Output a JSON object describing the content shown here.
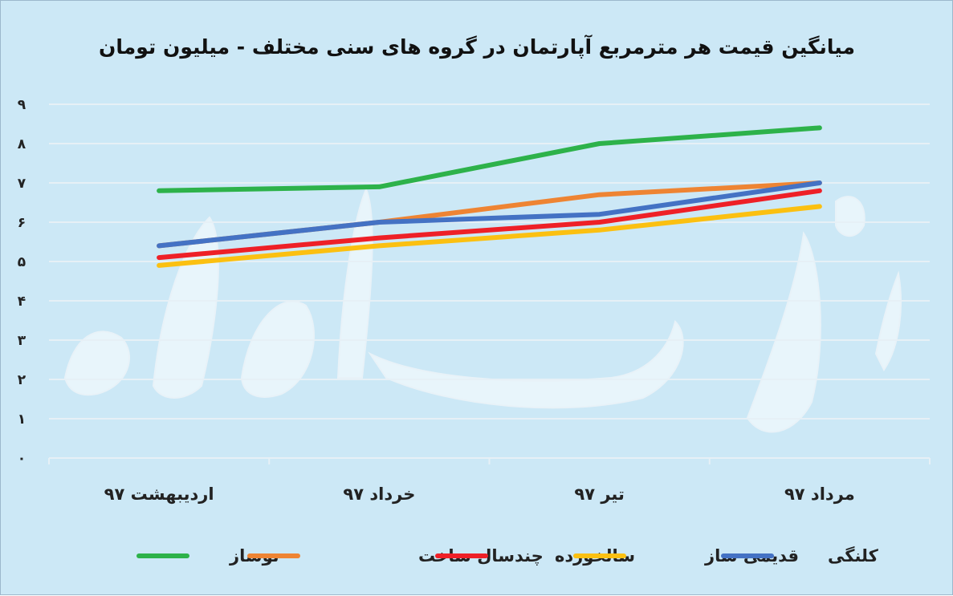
{
  "chart_data": {
    "type": "line",
    "title": "میانگین قیمت هر مترمربع آپارتمان در گروه های سنی مختلف - میلیون تومان",
    "categories": [
      "اردیبهشت ۹۷",
      "خرداد ۹۷",
      "تیر ۹۷",
      "مرداد ۹۷"
    ],
    "y_ticks": [
      "۰",
      "۱",
      "۲",
      "۳",
      "۴",
      "۵",
      "۶",
      "۷",
      "۸",
      "۹"
    ],
    "ylim": [
      0,
      9
    ],
    "grid": true,
    "legend_position": "bottom",
    "series": [
      {
        "name": "نوساز",
        "color": "#2db24a",
        "values": [
          6.8,
          6.9,
          8.0,
          8.4
        ]
      },
      {
        "name": "چندسال ساخت",
        "color": "#ee8433",
        "values": [
          5.4,
          6.0,
          6.7,
          7.0
        ]
      },
      {
        "name": "سالخورده",
        "color": "#ee2027",
        "values": [
          5.1,
          5.6,
          6.0,
          6.8
        ]
      },
      {
        "name": "قدیمی ساز",
        "color": "#fbc011",
        "values": [
          4.9,
          5.4,
          5.8,
          6.4
        ]
      },
      {
        "name": "کلنگی",
        "color": "#4472c4",
        "values": [
          5.4,
          6.0,
          6.2,
          7.0
        ]
      }
    ]
  }
}
